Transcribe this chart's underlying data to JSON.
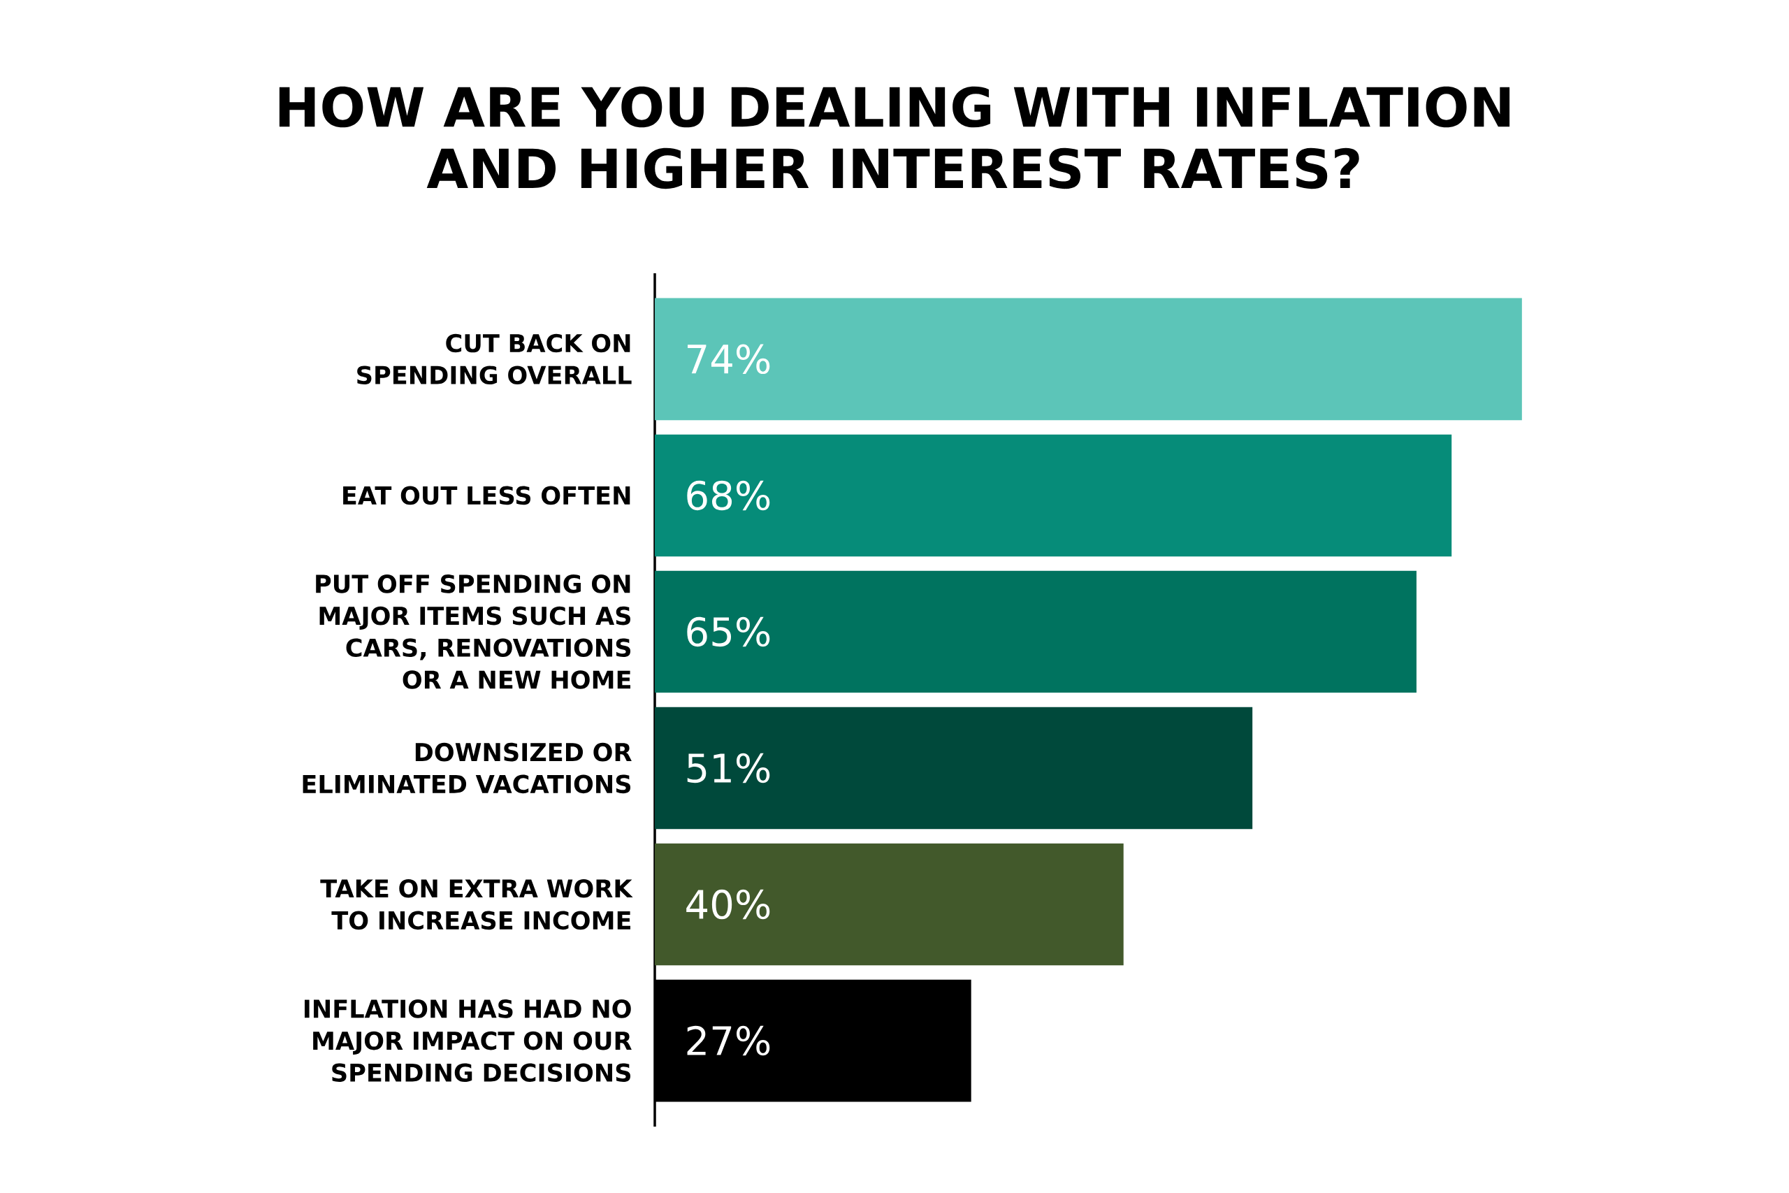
{
  "chart_data": {
    "type": "bar",
    "orientation": "horizontal",
    "title": "HOW ARE YOU DEALING WITH INFLATION AND HIGHER INTEREST RATES?",
    "categories": [
      "CUT BACK ON SPENDING OVERALL",
      "EAT OUT LESS OFTEN",
      "PUT OFF SPENDING ON MAJOR ITEMS SUCH AS CARS, RENOVATIONS OR A NEW HOME",
      "DOWNSIZED OR ELIMINATED VACATIONS",
      "TAKE ON EXTRA WORK TO INCREASE INCOME",
      "INFLATION HAS HAD NO MAJOR IMPACT ON OUR SPENDING DECISIONS"
    ],
    "values": [
      74,
      68,
      65,
      51,
      40,
      27
    ],
    "value_labels": [
      "74%",
      "68%",
      "65%",
      "51%",
      "40%",
      "27%"
    ],
    "colors": [
      "#5cc5b8",
      "#068c79",
      "#00735f",
      "#00493b",
      "#42592b",
      "#000000"
    ]
  }
}
